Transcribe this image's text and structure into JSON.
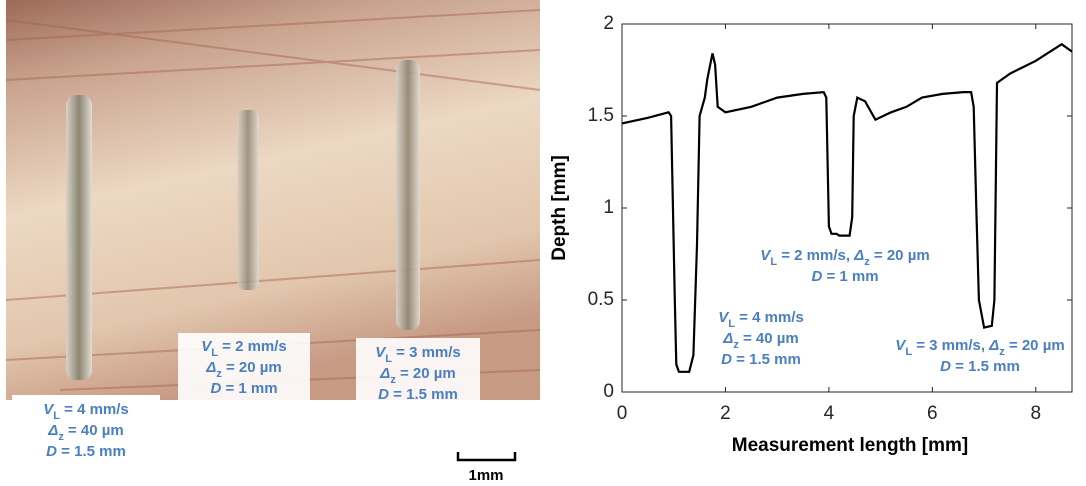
{
  "photo": {
    "labels": [
      [
        [
          {
            "text": "V",
            "style": "var"
          },
          {
            "text": "L",
            "style": "sub"
          },
          {
            "text": " = 4 mm/s",
            "style": "plain"
          }
        ],
        [
          {
            "text": "Δ",
            "style": "var"
          },
          {
            "text": "z",
            "style": "sub"
          },
          {
            "text": " = 40 µm",
            "style": "plain"
          }
        ],
        [
          {
            "text": "D",
            "style": "var"
          },
          {
            "text": " = 1.5 mm",
            "style": "plain"
          }
        ]
      ],
      [
        [
          {
            "text": "V",
            "style": "var"
          },
          {
            "text": "L",
            "style": "sub"
          },
          {
            "text": " = 2 mm/s",
            "style": "plain"
          }
        ],
        [
          {
            "text": "Δ",
            "style": "var"
          },
          {
            "text": "z",
            "style": "sub"
          },
          {
            "text": " = 20 µm",
            "style": "plain"
          }
        ],
        [
          {
            "text": "D",
            "style": "var"
          },
          {
            "text": " = 1 mm",
            "style": "plain"
          }
        ]
      ],
      [
        [
          {
            "text": "V",
            "style": "var"
          },
          {
            "text": "L",
            "style": "sub"
          },
          {
            "text": " = 3 mm/s",
            "style": "plain"
          }
        ],
        [
          {
            "text": "Δ",
            "style": "var"
          },
          {
            "text": "z",
            "style": "sub"
          },
          {
            "text": " = 20 µm",
            "style": "plain"
          }
        ],
        [
          {
            "text": "D",
            "style": "var"
          },
          {
            "text": " = 1.5 mm",
            "style": "plain"
          }
        ]
      ]
    ],
    "scale_bar": "1mm"
  },
  "chart_data": {
    "type": "line",
    "xlabel": "Measurement length [mm]",
    "ylabel": "Depth [mm]",
    "x": [
      0,
      0.5,
      0.9,
      0.95,
      1.02,
      1.05,
      1.1,
      1.3,
      1.38,
      1.45,
      1.5,
      1.6,
      1.65,
      1.75,
      1.8,
      1.85,
      2.0,
      2.5,
      3.0,
      3.5,
      3.9,
      3.95,
      4.0,
      4.05,
      4.15,
      4.2,
      4.4,
      4.45,
      4.48,
      4.55,
      4.7,
      4.9,
      5.2,
      5.5,
      5.8,
      6.2,
      6.6,
      6.75,
      6.8,
      6.85,
      6.9,
      7.0,
      7.15,
      7.2,
      7.25,
      7.5,
      8.0,
      8.5,
      8.7
    ],
    "series": [
      {
        "color": "#000000",
        "values": [
          1.46,
          1.49,
          1.52,
          1.5,
          0.5,
          0.15,
          0.11,
          0.11,
          0.2,
          0.8,
          1.5,
          1.6,
          1.7,
          1.84,
          1.78,
          1.55,
          1.52,
          1.55,
          1.6,
          1.62,
          1.63,
          1.6,
          0.9,
          0.86,
          0.86,
          0.85,
          0.85,
          0.95,
          1.5,
          1.6,
          1.58,
          1.48,
          1.52,
          1.55,
          1.6,
          1.62,
          1.63,
          1.63,
          1.55,
          1.0,
          0.5,
          0.35,
          0.36,
          0.5,
          1.68,
          1.73,
          1.8,
          1.89,
          1.85
        ]
      }
    ],
    "xlim": [
      0,
      8.7
    ],
    "ylim": [
      0,
      2
    ],
    "xticks": [
      0,
      2,
      4,
      6,
      8
    ],
    "yticks": [
      0,
      0.5,
      1,
      1.5,
      2
    ],
    "annotations": [
      [
        [
          {
            "text": "V",
            "style": "var"
          },
          {
            "text": "L",
            "style": "sub"
          },
          {
            "text": " = 4 mm/s",
            "style": "plain"
          }
        ],
        [
          {
            "text": "Δ",
            "style": "var"
          },
          {
            "text": "z",
            "style": "sub"
          },
          {
            "text": " = 40 µm",
            "style": "plain"
          }
        ],
        [
          {
            "text": "D",
            "style": "var"
          },
          {
            "text": " = 1.5 mm",
            "style": "plain"
          }
        ]
      ],
      [
        [
          {
            "text": "V",
            "style": "var"
          },
          {
            "text": "L",
            "style": "sub"
          },
          {
            "text": " = 2 mm/s, ",
            "style": "plain"
          },
          {
            "text": "Δ",
            "style": "var"
          },
          {
            "text": "z",
            "style": "sub"
          },
          {
            "text": " = 20 µm",
            "style": "plain"
          }
        ],
        [
          {
            "text": "D",
            "style": "var"
          },
          {
            "text": " = 1 mm",
            "style": "plain"
          }
        ]
      ],
      [
        [
          {
            "text": "V",
            "style": "var"
          },
          {
            "text": "L",
            "style": "sub"
          },
          {
            "text": " = 3 mm/s, ",
            "style": "plain"
          },
          {
            "text": "Δ",
            "style": "var"
          },
          {
            "text": "z",
            "style": "sub"
          },
          {
            "text": " = 20 µm",
            "style": "plain"
          }
        ],
        [
          {
            "text": "D",
            "style": "var"
          },
          {
            "text": " = 1.5 mm",
            "style": "plain"
          }
        ]
      ]
    ]
  }
}
